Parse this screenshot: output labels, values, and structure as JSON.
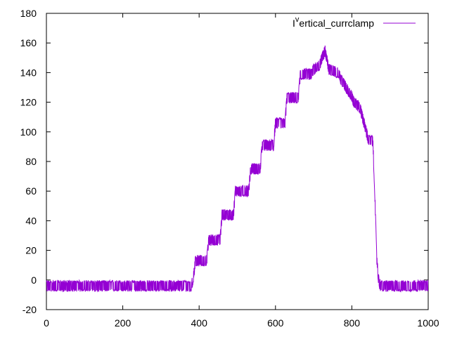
{
  "chart_data": {
    "type": "line",
    "title": "",
    "xlabel": "",
    "ylabel": "",
    "xlim": [
      0,
      1000
    ],
    "ylim": [
      -20,
      180
    ],
    "x_ticks": [
      0,
      200,
      400,
      600,
      800,
      1000
    ],
    "y_ticks": [
      -20,
      0,
      20,
      40,
      60,
      80,
      100,
      120,
      140,
      160,
      180
    ],
    "legend_position": "top-right",
    "grid": false,
    "series": [
      {
        "name": "I^vertical_currclamp",
        "name_base": "I",
        "name_sup": "v",
        "name_rest": "ertical_currclamp",
        "color": "#9400d3",
        "trend": {
          "x": [
            0,
            380,
            385,
            390,
            420,
            425,
            455,
            460,
            490,
            495,
            530,
            535,
            560,
            565,
            595,
            600,
            625,
            630,
            660,
            665,
            695,
            700,
            715,
            730,
            740,
            765,
            770,
            800,
            805,
            820,
            830,
            840,
            845,
            855,
            860,
            865,
            870,
            875,
            880,
            1000
          ],
          "y": [
            -4,
            -4,
            2,
            13,
            13,
            27,
            27,
            44,
            44,
            60,
            60,
            75,
            75,
            91,
            91,
            106,
            106,
            123,
            123,
            139,
            139,
            142,
            145,
            155,
            142,
            140,
            136,
            124,
            120,
            117,
            108,
            98,
            94,
            94,
            60,
            15,
            0,
            -4,
            -4,
            -4
          ]
        },
        "noise_band": 3.8
      }
    ]
  }
}
